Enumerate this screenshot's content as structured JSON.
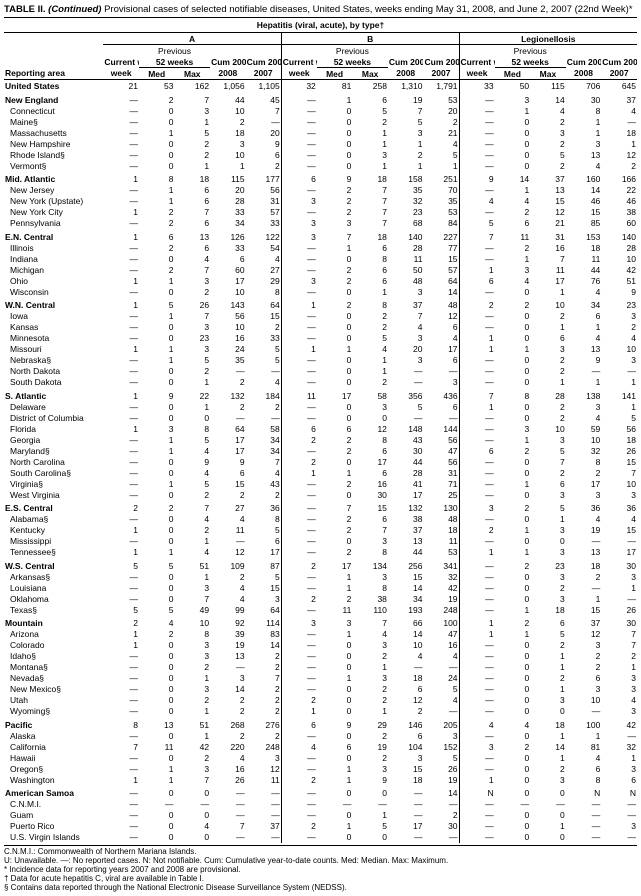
{
  "title_prefix": "TABLE II. ",
  "title_cont": "(Continued)",
  "title_rest": " Provisional cases of selected notifiable diseases, United States, weeks ending May 31, 2008, and June 2, 2007 (22nd Week)*",
  "super_header": "Hepatitis (viral, acute), by type†",
  "group_headers": {
    "a": "A",
    "b": "B",
    "c": "Legionellosis"
  },
  "prev_label": "Previous",
  "weeks_label": "52 weeks",
  "col_labels": {
    "area": "Reporting area",
    "current": "Current week",
    "med": "Med",
    "max": "Max",
    "cum08": "Cum 2008",
    "cum07": "Cum 2007"
  },
  "rows": [
    {
      "region": true,
      "first": true,
      "area": "United States",
      "v": [
        "21",
        "53",
        "162",
        "1,056",
        "1,105",
        "32",
        "81",
        "258",
        "1,310",
        "1,791",
        "33",
        "50",
        "115",
        "706",
        "645"
      ]
    },
    {
      "region": true,
      "area": "New England",
      "v": [
        "—",
        "2",
        "7",
        "44",
        "45",
        "—",
        "1",
        "6",
        "19",
        "53",
        "—",
        "3",
        "14",
        "30",
        "37"
      ]
    },
    {
      "area": "Connecticut",
      "v": [
        "—",
        "0",
        "3",
        "10",
        "7",
        "—",
        "0",
        "5",
        "7",
        "20",
        "—",
        "1",
        "4",
        "8",
        "4"
      ]
    },
    {
      "area": "Maine§",
      "v": [
        "—",
        "0",
        "1",
        "2",
        "—",
        "—",
        "0",
        "2",
        "5",
        "2",
        "—",
        "0",
        "2",
        "1",
        "—"
      ]
    },
    {
      "area": "Massachusetts",
      "v": [
        "—",
        "1",
        "5",
        "18",
        "20",
        "—",
        "0",
        "1",
        "3",
        "21",
        "—",
        "0",
        "3",
        "1",
        "18"
      ]
    },
    {
      "area": "New Hampshire",
      "v": [
        "—",
        "0",
        "2",
        "3",
        "9",
        "—",
        "0",
        "1",
        "1",
        "4",
        "—",
        "0",
        "2",
        "3",
        "1"
      ]
    },
    {
      "area": "Rhode Island§",
      "v": [
        "—",
        "0",
        "2",
        "10",
        "6",
        "—",
        "0",
        "3",
        "2",
        "5",
        "—",
        "0",
        "5",
        "13",
        "12"
      ]
    },
    {
      "area": "Vermont§",
      "v": [
        "—",
        "0",
        "1",
        "1",
        "2",
        "—",
        "0",
        "1",
        "1",
        "1",
        "—",
        "0",
        "2",
        "4",
        "2"
      ]
    },
    {
      "region": true,
      "area": "Mid. Atlantic",
      "v": [
        "1",
        "8",
        "18",
        "115",
        "177",
        "6",
        "9",
        "18",
        "158",
        "251",
        "9",
        "14",
        "37",
        "160",
        "166"
      ]
    },
    {
      "area": "New Jersey",
      "v": [
        "—",
        "1",
        "6",
        "20",
        "56",
        "—",
        "2",
        "7",
        "35",
        "70",
        "—",
        "1",
        "13",
        "14",
        "22"
      ]
    },
    {
      "area": "New York (Upstate)",
      "v": [
        "—",
        "1",
        "6",
        "28",
        "31",
        "3",
        "2",
        "7",
        "32",
        "35",
        "4",
        "4",
        "15",
        "46",
        "46"
      ]
    },
    {
      "area": "New York City",
      "v": [
        "1",
        "2",
        "7",
        "33",
        "57",
        "—",
        "2",
        "7",
        "23",
        "53",
        "—",
        "2",
        "12",
        "15",
        "38"
      ]
    },
    {
      "area": "Pennsylvania",
      "v": [
        "—",
        "2",
        "6",
        "34",
        "33",
        "3",
        "3",
        "7",
        "68",
        "84",
        "5",
        "6",
        "21",
        "85",
        "60"
      ]
    },
    {
      "region": true,
      "area": "E.N. Central",
      "v": [
        "1",
        "6",
        "13",
        "126",
        "122",
        "3",
        "7",
        "18",
        "140",
        "227",
        "7",
        "11",
        "31",
        "153",
        "140"
      ]
    },
    {
      "area": "Illinois",
      "v": [
        "—",
        "2",
        "6",
        "33",
        "54",
        "—",
        "1",
        "6",
        "28",
        "77",
        "—",
        "2",
        "16",
        "18",
        "28"
      ]
    },
    {
      "area": "Indiana",
      "v": [
        "—",
        "0",
        "4",
        "6",
        "4",
        "—",
        "0",
        "8",
        "11",
        "15",
        "—",
        "1",
        "7",
        "11",
        "10"
      ]
    },
    {
      "area": "Michigan",
      "v": [
        "—",
        "2",
        "7",
        "60",
        "27",
        "—",
        "2",
        "6",
        "50",
        "57",
        "1",
        "3",
        "11",
        "44",
        "42"
      ]
    },
    {
      "area": "Ohio",
      "v": [
        "1",
        "1",
        "3",
        "17",
        "29",
        "3",
        "2",
        "6",
        "48",
        "64",
        "6",
        "4",
        "17",
        "76",
        "51"
      ]
    },
    {
      "area": "Wisconsin",
      "v": [
        "—",
        "0",
        "2",
        "10",
        "8",
        "—",
        "0",
        "1",
        "3",
        "14",
        "—",
        "0",
        "1",
        "4",
        "9"
      ]
    },
    {
      "region": true,
      "area": "W.N. Central",
      "v": [
        "1",
        "5",
        "26",
        "143",
        "64",
        "1",
        "2",
        "8",
        "37",
        "48",
        "2",
        "2",
        "10",
        "34",
        "23"
      ]
    },
    {
      "area": "Iowa",
      "v": [
        "—",
        "1",
        "7",
        "56",
        "15",
        "—",
        "0",
        "2",
        "7",
        "12",
        "—",
        "0",
        "2",
        "6",
        "3"
      ]
    },
    {
      "area": "Kansas",
      "v": [
        "—",
        "0",
        "3",
        "10",
        "2",
        "—",
        "0",
        "2",
        "4",
        "6",
        "—",
        "0",
        "1",
        "1",
        "2"
      ]
    },
    {
      "area": "Minnesota",
      "v": [
        "—",
        "0",
        "23",
        "16",
        "33",
        "—",
        "0",
        "5",
        "3",
        "4",
        "1",
        "0",
        "6",
        "4",
        "4"
      ]
    },
    {
      "area": "Missouri",
      "v": [
        "1",
        "1",
        "3",
        "24",
        "5",
        "1",
        "1",
        "4",
        "20",
        "17",
        "1",
        "1",
        "3",
        "13",
        "10"
      ]
    },
    {
      "area": "Nebraska§",
      "v": [
        "—",
        "1",
        "5",
        "35",
        "5",
        "—",
        "0",
        "1",
        "3",
        "6",
        "—",
        "0",
        "2",
        "9",
        "3"
      ]
    },
    {
      "area": "North Dakota",
      "v": [
        "—",
        "0",
        "2",
        "—",
        "—",
        "—",
        "0",
        "1",
        "—",
        "—",
        "—",
        "0",
        "2",
        "—",
        "—"
      ]
    },
    {
      "area": "South Dakota",
      "v": [
        "—",
        "0",
        "1",
        "2",
        "4",
        "—",
        "0",
        "2",
        "—",
        "3",
        "—",
        "0",
        "1",
        "1",
        "1"
      ]
    },
    {
      "region": true,
      "area": "S. Atlantic",
      "v": [
        "1",
        "9",
        "22",
        "132",
        "184",
        "11",
        "17",
        "58",
        "356",
        "436",
        "7",
        "8",
        "28",
        "138",
        "141"
      ]
    },
    {
      "area": "Delaware",
      "v": [
        "—",
        "0",
        "1",
        "2",
        "2",
        "—",
        "0",
        "3",
        "5",
        "6",
        "1",
        "0",
        "2",
        "3",
        "1"
      ]
    },
    {
      "area": "District of Columbia",
      "v": [
        "—",
        "0",
        "0",
        "—",
        "—",
        "—",
        "0",
        "0",
        "—",
        "—",
        "—",
        "0",
        "2",
        "4",
        "5"
      ]
    },
    {
      "area": "Florida",
      "v": [
        "1",
        "3",
        "8",
        "64",
        "58",
        "6",
        "6",
        "12",
        "148",
        "144",
        "—",
        "3",
        "10",
        "59",
        "56"
      ]
    },
    {
      "area": "Georgia",
      "v": [
        "—",
        "1",
        "5",
        "17",
        "34",
        "2",
        "2",
        "8",
        "43",
        "56",
        "—",
        "1",
        "3",
        "10",
        "18"
      ]
    },
    {
      "area": "Maryland§",
      "v": [
        "—",
        "1",
        "4",
        "17",
        "34",
        "—",
        "2",
        "6",
        "30",
        "47",
        "6",
        "2",
        "5",
        "32",
        "26"
      ]
    },
    {
      "area": "North Carolina",
      "v": [
        "—",
        "0",
        "9",
        "9",
        "7",
        "2",
        "0",
        "17",
        "44",
        "56",
        "—",
        "0",
        "7",
        "8",
        "15"
      ]
    },
    {
      "area": "South Carolina§",
      "v": [
        "—",
        "0",
        "4",
        "6",
        "4",
        "1",
        "1",
        "6",
        "28",
        "31",
        "—",
        "0",
        "2",
        "2",
        "7"
      ]
    },
    {
      "area": "Virginia§",
      "v": [
        "—",
        "1",
        "5",
        "15",
        "43",
        "—",
        "2",
        "16",
        "41",
        "71",
        "—",
        "1",
        "6",
        "17",
        "10"
      ]
    },
    {
      "area": "West Virginia",
      "v": [
        "—",
        "0",
        "2",
        "2",
        "2",
        "—",
        "0",
        "30",
        "17",
        "25",
        "—",
        "0",
        "3",
        "3",
        "3"
      ]
    },
    {
      "region": true,
      "area": "E.S. Central",
      "v": [
        "2",
        "2",
        "7",
        "27",
        "36",
        "—",
        "7",
        "15",
        "132",
        "130",
        "3",
        "2",
        "5",
        "36",
        "36"
      ]
    },
    {
      "area": "Alabama§",
      "v": [
        "—",
        "0",
        "4",
        "4",
        "8",
        "—",
        "2",
        "6",
        "38",
        "48",
        "—",
        "0",
        "1",
        "4",
        "4"
      ]
    },
    {
      "area": "Kentucky",
      "v": [
        "1",
        "0",
        "2",
        "11",
        "5",
        "—",
        "2",
        "7",
        "37",
        "18",
        "2",
        "1",
        "3",
        "19",
        "15"
      ]
    },
    {
      "area": "Mississippi",
      "v": [
        "—",
        "0",
        "1",
        "—",
        "6",
        "—",
        "0",
        "3",
        "13",
        "11",
        "—",
        "0",
        "0",
        "—",
        "—"
      ]
    },
    {
      "area": "Tennessee§",
      "v": [
        "1",
        "1",
        "4",
        "12",
        "17",
        "—",
        "2",
        "8",
        "44",
        "53",
        "1",
        "1",
        "3",
        "13",
        "17"
      ]
    },
    {
      "region": true,
      "area": "W.S. Central",
      "v": [
        "5",
        "5",
        "51",
        "109",
        "87",
        "2",
        "17",
        "134",
        "256",
        "341",
        "—",
        "2",
        "23",
        "18",
        "30"
      ]
    },
    {
      "area": "Arkansas§",
      "v": [
        "—",
        "0",
        "1",
        "2",
        "5",
        "—",
        "1",
        "3",
        "15",
        "32",
        "—",
        "0",
        "3",
        "2",
        "3"
      ]
    },
    {
      "area": "Louisiana",
      "v": [
        "—",
        "0",
        "3",
        "4",
        "15",
        "—",
        "1",
        "8",
        "14",
        "42",
        "—",
        "0",
        "2",
        "—",
        "1"
      ]
    },
    {
      "area": "Oklahoma",
      "v": [
        "—",
        "0",
        "7",
        "4",
        "3",
        "2",
        "2",
        "38",
        "34",
        "19",
        "—",
        "0",
        "3",
        "1",
        "—"
      ]
    },
    {
      "area": "Texas§",
      "v": [
        "5",
        "5",
        "49",
        "99",
        "64",
        "—",
        "11",
        "110",
        "193",
        "248",
        "—",
        "1",
        "18",
        "15",
        "26"
      ]
    },
    {
      "region": true,
      "area": "Mountain",
      "v": [
        "2",
        "4",
        "10",
        "92",
        "114",
        "3",
        "3",
        "7",
        "66",
        "100",
        "1",
        "2",
        "6",
        "37",
        "30"
      ]
    },
    {
      "area": "Arizona",
      "v": [
        "1",
        "2",
        "8",
        "39",
        "83",
        "—",
        "1",
        "4",
        "14",
        "47",
        "1",
        "1",
        "5",
        "12",
        "7"
      ]
    },
    {
      "area": "Colorado",
      "v": [
        "1",
        "0",
        "3",
        "19",
        "14",
        "—",
        "0",
        "3",
        "10",
        "16",
        "—",
        "0",
        "2",
        "3",
        "7"
      ]
    },
    {
      "area": "Idaho§",
      "v": [
        "—",
        "0",
        "3",
        "13",
        "2",
        "—",
        "0",
        "2",
        "4",
        "4",
        "—",
        "0",
        "1",
        "2",
        "2"
      ]
    },
    {
      "area": "Montana§",
      "v": [
        "—",
        "0",
        "2",
        "—",
        "2",
        "—",
        "0",
        "1",
        "—",
        "—",
        "—",
        "0",
        "1",
        "2",
        "1"
      ]
    },
    {
      "area": "Nevada§",
      "v": [
        "—",
        "0",
        "1",
        "3",
        "7",
        "—",
        "1",
        "3",
        "18",
        "24",
        "—",
        "0",
        "2",
        "6",
        "3"
      ]
    },
    {
      "area": "New Mexico§",
      "v": [
        "—",
        "0",
        "3",
        "14",
        "2",
        "—",
        "0",
        "2",
        "6",
        "5",
        "—",
        "0",
        "1",
        "3",
        "3"
      ]
    },
    {
      "area": "Utah",
      "v": [
        "—",
        "0",
        "2",
        "2",
        "2",
        "2",
        "0",
        "2",
        "12",
        "4",
        "—",
        "0",
        "3",
        "10",
        "4"
      ]
    },
    {
      "area": "Wyoming§",
      "v": [
        "—",
        "0",
        "1",
        "2",
        "2",
        "1",
        "0",
        "1",
        "2",
        "—",
        "—",
        "0",
        "0",
        "—",
        "3"
      ]
    },
    {
      "region": true,
      "area": "Pacific",
      "v": [
        "8",
        "13",
        "51",
        "268",
        "276",
        "6",
        "9",
        "29",
        "146",
        "205",
        "4",
        "4",
        "18",
        "100",
        "42"
      ]
    },
    {
      "area": "Alaska",
      "v": [
        "—",
        "0",
        "1",
        "2",
        "2",
        "—",
        "0",
        "2",
        "6",
        "3",
        "—",
        "0",
        "1",
        "1",
        "—"
      ]
    },
    {
      "area": "California",
      "v": [
        "7",
        "11",
        "42",
        "220",
        "248",
        "4",
        "6",
        "19",
        "104",
        "152",
        "3",
        "2",
        "14",
        "81",
        "32"
      ]
    },
    {
      "area": "Hawaii",
      "v": [
        "—",
        "0",
        "2",
        "4",
        "3",
        "—",
        "0",
        "2",
        "3",
        "5",
        "—",
        "0",
        "1",
        "4",
        "1"
      ]
    },
    {
      "area": "Oregon§",
      "v": [
        "—",
        "1",
        "3",
        "16",
        "12",
        "—",
        "1",
        "3",
        "15",
        "26",
        "—",
        "0",
        "2",
        "6",
        "3"
      ]
    },
    {
      "area": "Washington",
      "v": [
        "1",
        "1",
        "7",
        "26",
        "11",
        "2",
        "1",
        "9",
        "18",
        "19",
        "1",
        "0",
        "3",
        "8",
        "6"
      ]
    },
    {
      "region": true,
      "area": "American Samoa",
      "v": [
        "—",
        "0",
        "0",
        "—",
        "—",
        "—",
        "0",
        "0",
        "—",
        "14",
        "N",
        "0",
        "0",
        "N",
        "N"
      ]
    },
    {
      "area": "C.N.M.I.",
      "v": [
        "—",
        "—",
        "—",
        "—",
        "—",
        "—",
        "—",
        "—",
        "—",
        "—",
        "—",
        "—",
        "—",
        "—",
        "—"
      ]
    },
    {
      "area": "Guam",
      "v": [
        "—",
        "0",
        "0",
        "—",
        "—",
        "—",
        "0",
        "1",
        "—",
        "2",
        "—",
        "0",
        "0",
        "—",
        "—"
      ]
    },
    {
      "area": "Puerto Rico",
      "v": [
        "—",
        "0",
        "4",
        "7",
        "37",
        "2",
        "1",
        "5",
        "17",
        "30",
        "—",
        "0",
        "1",
        "—",
        "3"
      ]
    },
    {
      "area": "U.S. Virgin Islands",
      "v": [
        "—",
        "0",
        "0",
        "—",
        "—",
        "—",
        "0",
        "0",
        "—",
        "—",
        "—",
        "0",
        "0",
        "—",
        "—"
      ]
    }
  ],
  "footnotes": {
    "l1": "C.N.M.I.: Commonwealth of Northern Mariana Islands.",
    "l2": "U: Unavailable.    —: No reported cases.    N: Not notifiable.    Cum: Cumulative year-to-date counts.    Med: Median.    Max: Maximum.",
    "l3": "* Incidence data for reporting years 2007 and 2008 are provisional.",
    "l4": "† Data for acute hepatitis C, viral are available in Table I.",
    "l5": "§ Contains data reported through the National Electronic Disease Surveillance System (NEDSS)."
  }
}
